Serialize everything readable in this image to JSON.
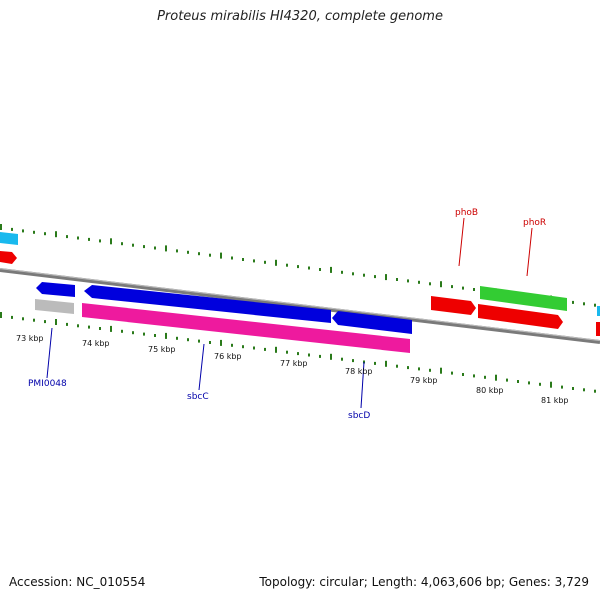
{
  "title": "Proteus mirabilis HI4320, complete genome",
  "footer": {
    "accession": "Accession: NC_010554",
    "stats": "Topology: circular; Length: 4,063,606 bp; Genes: 3,729"
  },
  "ticks": [
    "73 kbp",
    "74 kbp",
    "75 kbp",
    "76 kbp",
    "77 kbp",
    "78 kbp",
    "79 kbp",
    "80 kbp",
    "81 kbp"
  ],
  "gene_labels": {
    "pmi0048": "PMI0048",
    "sbcC": "sbcC",
    "sbcD": "sbcD",
    "phoB": "phoB",
    "phoR": "phoR"
  },
  "colors": {
    "backbone": "#808080",
    "blue_gene": "#0000dd",
    "magenta_gene": "#ee1a9e",
    "red_gene": "#ee0000",
    "green_gene": "#33cc33",
    "cyan_gene": "#19b9ee",
    "grey_gene": "#bbbbbb",
    "gc_dots": "#2a7a1a",
    "label_blue": "#0000aa",
    "label_red": "#cc0000"
  }
}
